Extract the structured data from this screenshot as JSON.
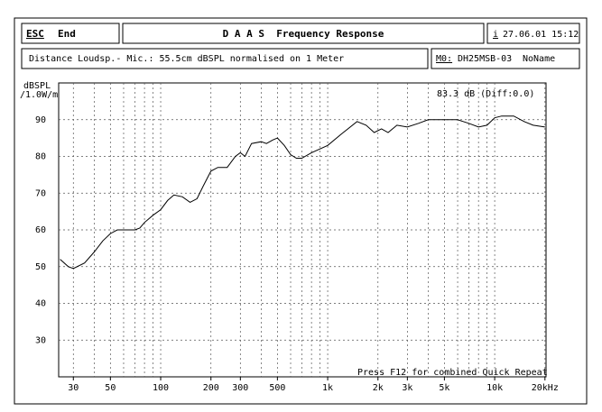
{
  "header": {
    "key": "ESC",
    "action": "End",
    "title": "D A A S  Frequency Response",
    "info_key": "i",
    "datetime": "27.06.01 15:12",
    "description": "Distance Loudsp.- Mic.: 55.5cm dBSPL normalised on 1 Meter",
    "model_key": "M0:",
    "model": "DH25MSB-03",
    "name": "NoName"
  },
  "chart_data": {
    "type": "line",
    "ylabel": [
      "dBSPL",
      "/1.0W/m"
    ],
    "annotation": "83.3 dB (Diff:0.0)",
    "footer": "Press F12 for combined Quick Repeat",
    "xscale": "log",
    "grid": true,
    "color": "#000000",
    "xlim": [
      24.5,
      20300
    ],
    "ylim": [
      20,
      100
    ],
    "yticks": [
      30,
      40,
      50,
      60,
      70,
      80,
      90
    ],
    "xticks": [
      30,
      50,
      100,
      200,
      300,
      500,
      {
        "value": 1000,
        "label": "1k"
      },
      {
        "value": 2000,
        "label": "2k"
      },
      {
        "value": 3000,
        "label": "3k"
      },
      {
        "value": 5000,
        "label": "5k"
      },
      {
        "value": 10000,
        "label": "10k"
      },
      {
        "value": 20000,
        "label": "20kHz"
      }
    ],
    "xgrid": [
      30,
      40,
      50,
      60,
      70,
      80,
      90,
      100,
      200,
      300,
      400,
      500,
      600,
      700,
      800,
      900,
      1000,
      2000,
      3000,
      4000,
      5000,
      6000,
      7000,
      8000,
      9000,
      10000,
      20000
    ],
    "x": [
      25,
      28,
      30,
      35,
      40,
      45,
      50,
      55,
      60,
      70,
      75,
      80,
      90,
      100,
      110,
      120,
      135,
      150,
      165,
      180,
      200,
      220,
      250,
      280,
      300,
      320,
      350,
      400,
      430,
      470,
      500,
      550,
      600,
      650,
      700,
      800,
      1000,
      1200,
      1500,
      1700,
      1900,
      2100,
      2300,
      2600,
      3000,
      3500,
      4000,
      5000,
      6000,
      7000,
      8000,
      9000,
      10000,
      11000,
      13000,
      15000,
      17000,
      20000
    ],
    "values": [
      52,
      50,
      49.5,
      51,
      54,
      57,
      59,
      60,
      60,
      60,
      60.5,
      62,
      64,
      65.5,
      68,
      69.5,
      69,
      67.5,
      68.5,
      72,
      76,
      77,
      77,
      80,
      81,
      80,
      83.5,
      84,
      83.5,
      84.5,
      85,
      83,
      80.5,
      79.5,
      79.5,
      81,
      83,
      86,
      89.5,
      88.5,
      86.5,
      87.5,
      86.5,
      88.5,
      88,
      89,
      90,
      90,
      90,
      89,
      88,
      88.5,
      90.5,
      91,
      91,
      89.5,
      88.5,
      88
    ]
  }
}
